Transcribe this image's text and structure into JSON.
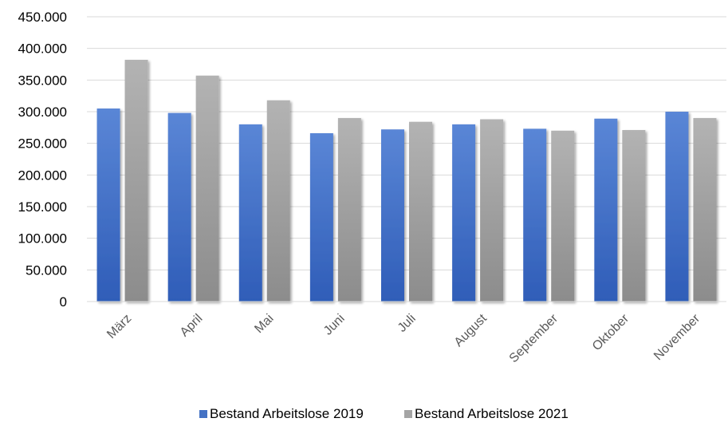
{
  "chart_data": {
    "type": "bar",
    "categories": [
      "März",
      "April",
      "Mai",
      "Juni",
      "Juli",
      "August",
      "September",
      "Oktober",
      "November"
    ],
    "series": [
      {
        "name": "Bestand Arbeitslose 2019",
        "color": "#4472c4",
        "values": [
          305000,
          298000,
          280000,
          266000,
          272000,
          280000,
          273000,
          289000,
          300000
        ]
      },
      {
        "name": "Bestand Arbeitslose 2021",
        "color": "#a5a5a5",
        "values": [
          382000,
          357000,
          318000,
          290000,
          284000,
          288000,
          270000,
          271000,
          290000
        ]
      }
    ],
    "ylim": [
      0,
      450000
    ],
    "yticks": [
      0,
      50000,
      100000,
      150000,
      200000,
      250000,
      300000,
      350000,
      400000,
      450000
    ],
    "ytick_labels": [
      "0",
      "50.000",
      "100.000",
      "150.000",
      "200.000",
      "250.000",
      "300.000",
      "350.000",
      "400.000",
      "450.000"
    ],
    "grid": true,
    "legend_position": "bottom"
  }
}
